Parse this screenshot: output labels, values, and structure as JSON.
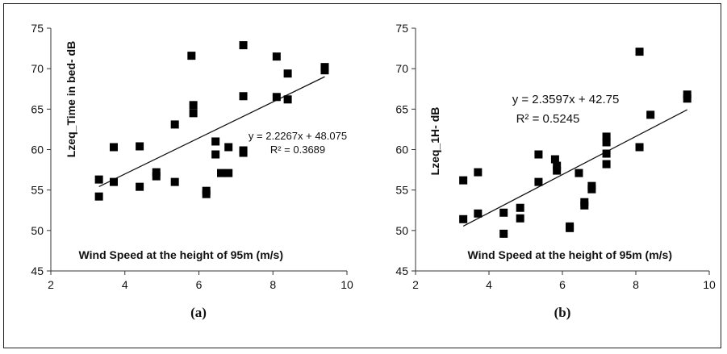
{
  "chart_data": [
    {
      "id": "a",
      "type": "scatter",
      "caption": "(a)",
      "xlabel": "Wind Speed at  the  height of 95m (m/s)",
      "ylabel": "Lzeq_Time in bed- dB",
      "xlim": [
        2,
        10
      ],
      "ylim": [
        45,
        75
      ],
      "xticks": [
        "2",
        "4",
        "6",
        "8",
        "10"
      ],
      "yticks": [
        "45",
        "50",
        "55",
        "60",
        "65",
        "70",
        "75"
      ],
      "grid": false,
      "trendline": {
        "slope": 2.2267,
        "intercept": 48.075,
        "x_range": [
          3.3,
          9.4
        ]
      },
      "equation": "y = 2.2267x + 48.075",
      "r2_label": "R² = 0.3689",
      "points": [
        [
          3.3,
          56.3
        ],
        [
          3.3,
          54.2
        ],
        [
          3.7,
          60.3
        ],
        [
          3.7,
          56.0
        ],
        [
          4.4,
          60.4
        ],
        [
          4.4,
          55.4
        ],
        [
          4.85,
          57.2
        ],
        [
          4.85,
          56.7
        ],
        [
          5.35,
          63.1
        ],
        [
          5.35,
          56.0
        ],
        [
          5.8,
          71.6
        ],
        [
          5.85,
          65.5
        ],
        [
          5.85,
          64.5
        ],
        [
          6.2,
          54.9
        ],
        [
          6.2,
          54.5
        ],
        [
          6.45,
          61.0
        ],
        [
          6.45,
          59.4
        ],
        [
          6.6,
          57.1
        ],
        [
          6.8,
          60.3
        ],
        [
          6.8,
          57.1
        ],
        [
          7.2,
          72.9
        ],
        [
          7.2,
          66.6
        ],
        [
          7.2,
          59.9
        ],
        [
          7.2,
          59.6
        ],
        [
          8.1,
          71.5
        ],
        [
          8.1,
          66.5
        ],
        [
          8.4,
          69.4
        ],
        [
          8.4,
          66.2
        ],
        [
          9.4,
          70.2
        ],
        [
          9.4,
          69.8
        ]
      ]
    },
    {
      "id": "b",
      "type": "scatter",
      "caption": "(b)",
      "xlabel": "Wind Speed at  the  height of 95m (m/s)",
      "ylabel": "Lzeq_1H- dB",
      "xlim": [
        2,
        10
      ],
      "ylim": [
        45,
        75
      ],
      "xticks": [
        "2",
        "4",
        "6",
        "8",
        "10"
      ],
      "yticks": [
        "45",
        "50",
        "55",
        "60",
        "65",
        "70",
        "75"
      ],
      "grid": false,
      "trendline": {
        "slope": 2.3597,
        "intercept": 42.75,
        "x_range": [
          3.3,
          9.4
        ]
      },
      "equation": "y = 2.3597x + 42.75",
      "r2_label": "R² = 0.5245",
      "points": [
        [
          3.3,
          56.2
        ],
        [
          3.3,
          51.4
        ],
        [
          3.7,
          57.2
        ],
        [
          3.7,
          52.1
        ],
        [
          4.4,
          52.2
        ],
        [
          4.4,
          49.6
        ],
        [
          4.85,
          52.8
        ],
        [
          4.85,
          51.5
        ],
        [
          5.35,
          59.4
        ],
        [
          5.35,
          56.0
        ],
        [
          5.8,
          58.8
        ],
        [
          5.85,
          58.0
        ],
        [
          5.85,
          57.4
        ],
        [
          6.2,
          50.5
        ],
        [
          6.2,
          50.3
        ],
        [
          6.45,
          57.1
        ],
        [
          6.6,
          53.5
        ],
        [
          6.6,
          53.1
        ],
        [
          6.8,
          55.5
        ],
        [
          6.8,
          55.1
        ],
        [
          7.2,
          61.6
        ],
        [
          7.2,
          60.9
        ],
        [
          7.2,
          59.5
        ],
        [
          7.2,
          58.2
        ],
        [
          8.1,
          72.1
        ],
        [
          8.1,
          60.3
        ],
        [
          8.4,
          64.3
        ],
        [
          9.4,
          66.8
        ],
        [
          9.4,
          66.3
        ]
      ]
    }
  ]
}
